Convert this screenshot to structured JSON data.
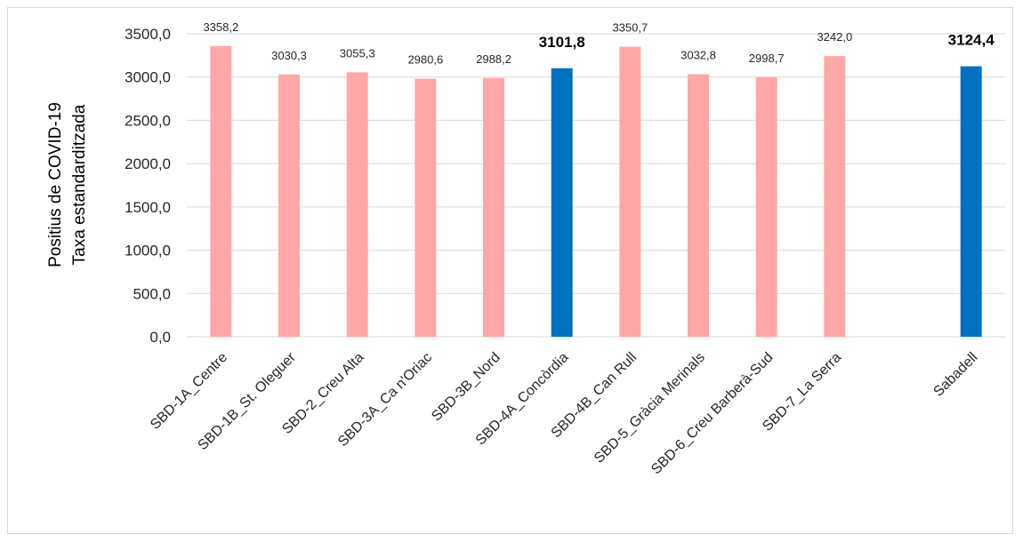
{
  "chart_data": {
    "type": "bar",
    "ylabel_line1": "Positius de COVID-19",
    "ylabel_line2": "Taxa estandarditzada",
    "xlabel": "",
    "ylim": [
      0,
      3500
    ],
    "ytick_step": 500,
    "ytick_labels": [
      "0,0",
      "500,0",
      "1000,0",
      "1500,0",
      "2000,0",
      "2500,0",
      "3000,0",
      "3500,0"
    ],
    "grid": true,
    "colors": {
      "area": "#ffa7a7",
      "highlight": "#0070c0",
      "grid": "#d9d9d9"
    },
    "categories": [
      "SBD-1A_Centre",
      "SBD-1B_St. Oleguer",
      "SBD-2_Creu Alta",
      "SBD-3A_Ca n'Oriac",
      "SBD-3B_Nord",
      "SBD-4A_Concòrdia",
      "SBD-4B_Can Rull",
      "SBD-5_Gràcia Merinals",
      "SBD-6_Creu Barberà-Sud",
      "SBD-7_La Serra",
      "",
      "Sabadell"
    ],
    "values": [
      3358.2,
      3030.3,
      3055.3,
      2980.6,
      2988.2,
      3101.8,
      3350.7,
      3032.8,
      2998.7,
      3242.0,
      null,
      3124.4
    ],
    "value_labels": [
      "3358,2",
      "3030,3",
      "3055,3",
      "2980,6",
      "2988,2",
      "3101,8",
      "3350,7",
      "3032,8",
      "2998,7",
      "3242,0",
      "",
      "3124,4"
    ],
    "highlighted": [
      "SBD-4A_Concòrdia",
      "Sabadell"
    ]
  }
}
